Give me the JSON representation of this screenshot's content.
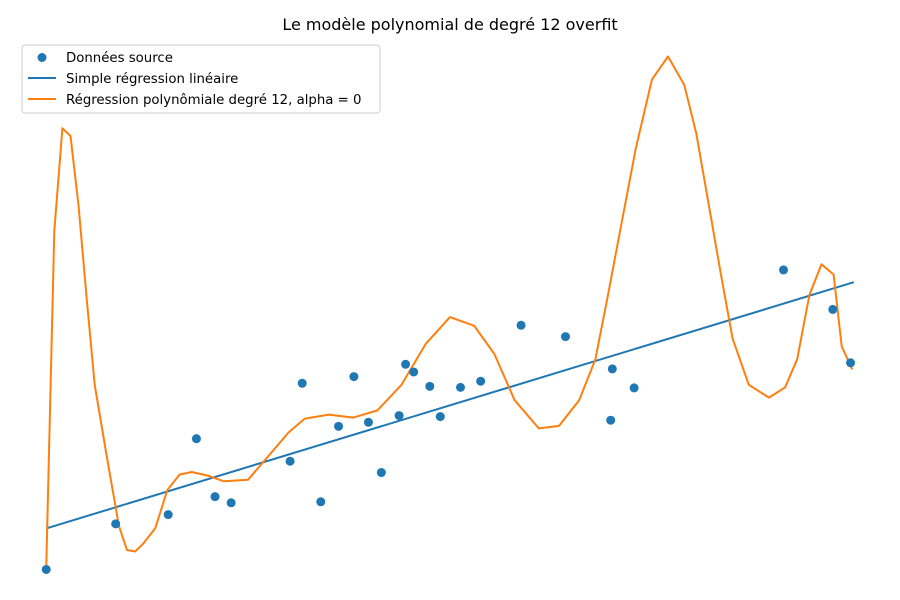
{
  "chart_data": {
    "type": "scatter",
    "title": "Le modèle polynomial de degré 12 overfit",
    "xlabel": "",
    "ylabel": "",
    "axes_visible": false,
    "grid": false,
    "legend_position": "top-left",
    "xlim": [
      -0.3,
      10.3
    ],
    "ylim": [
      -0.4,
      10.4
    ],
    "colors": {
      "scatter": "#1f77b4",
      "linear": "#1f77b4",
      "poly": "#ff7f0e"
    },
    "legend": [
      {
        "label": "Données source",
        "kind": "scatter"
      },
      {
        "label": "Simple régression linéaire",
        "kind": "linear"
      },
      {
        "label": "Régression polynômiale degré 12, alpha = 0",
        "kind": "poly"
      }
    ],
    "scatter": {
      "name": "Données source",
      "x": [
        0.0,
        0.86,
        1.51,
        1.86,
        2.09,
        2.29,
        3.02,
        3.17,
        3.4,
        3.62,
        3.81,
        3.99,
        4.15,
        4.37,
        4.45,
        4.55,
        4.75,
        4.88,
        5.13,
        5.38,
        5.88,
        6.43,
        6.99,
        7.01,
        7.28,
        9.13,
        9.74,
        9.96
      ],
      "y": [
        0.0,
        0.89,
        1.07,
        2.55,
        1.42,
        1.3,
        2.11,
        3.63,
        1.32,
        2.79,
        3.76,
        2.87,
        1.89,
        3.0,
        4.0,
        3.85,
        3.57,
        2.98,
        3.55,
        3.67,
        4.76,
        4.54,
        2.91,
        3.91,
        3.54,
        5.84,
        5.07,
        4.03
      ]
    },
    "linear_fit": {
      "name": "Simple régression linéaire",
      "x": [
        0.0,
        10.0
      ],
      "y": [
        0.8,
        5.6
      ]
    },
    "poly_fit": {
      "name": "Régression polynômiale degré 12, alpha = 0",
      "x": [
        0.0,
        0.1,
        0.2,
        0.3,
        0.4,
        0.5,
        0.6,
        0.75,
        0.9,
        1.0,
        1.1,
        1.2,
        1.35,
        1.5,
        1.65,
        1.8,
        2.0,
        2.2,
        2.5,
        2.8,
        3.0,
        3.2,
        3.5,
        3.8,
        4.1,
        4.4,
        4.7,
        5.0,
        5.3,
        5.55,
        5.8,
        6.1,
        6.35,
        6.6,
        6.8,
        6.95,
        7.1,
        7.3,
        7.5,
        7.7,
        7.9,
        8.05,
        8.2,
        8.35,
        8.5,
        8.7,
        8.95,
        9.15,
        9.3,
        9.45,
        9.6,
        9.75,
        9.85,
        9.98
      ],
      "y": [
        0.0,
        6.6,
        8.6,
        8.45,
        7.1,
        5.3,
        3.6,
        2.2,
        0.85,
        0.38,
        0.35,
        0.5,
        0.8,
        1.55,
        1.85,
        1.9,
        1.83,
        1.72,
        1.75,
        2.3,
        2.67,
        2.94,
        3.02,
        2.96,
        3.1,
        3.6,
        4.4,
        4.92,
        4.75,
        4.2,
        3.3,
        2.75,
        2.8,
        3.3,
        4.1,
        5.3,
        6.55,
        8.2,
        9.55,
        10.0,
        9.45,
        8.5,
        7.15,
        5.8,
        4.5,
        3.6,
        3.35,
        3.55,
        4.1,
        5.35,
        5.95,
        5.75,
        4.35,
        3.9
      ]
    }
  }
}
